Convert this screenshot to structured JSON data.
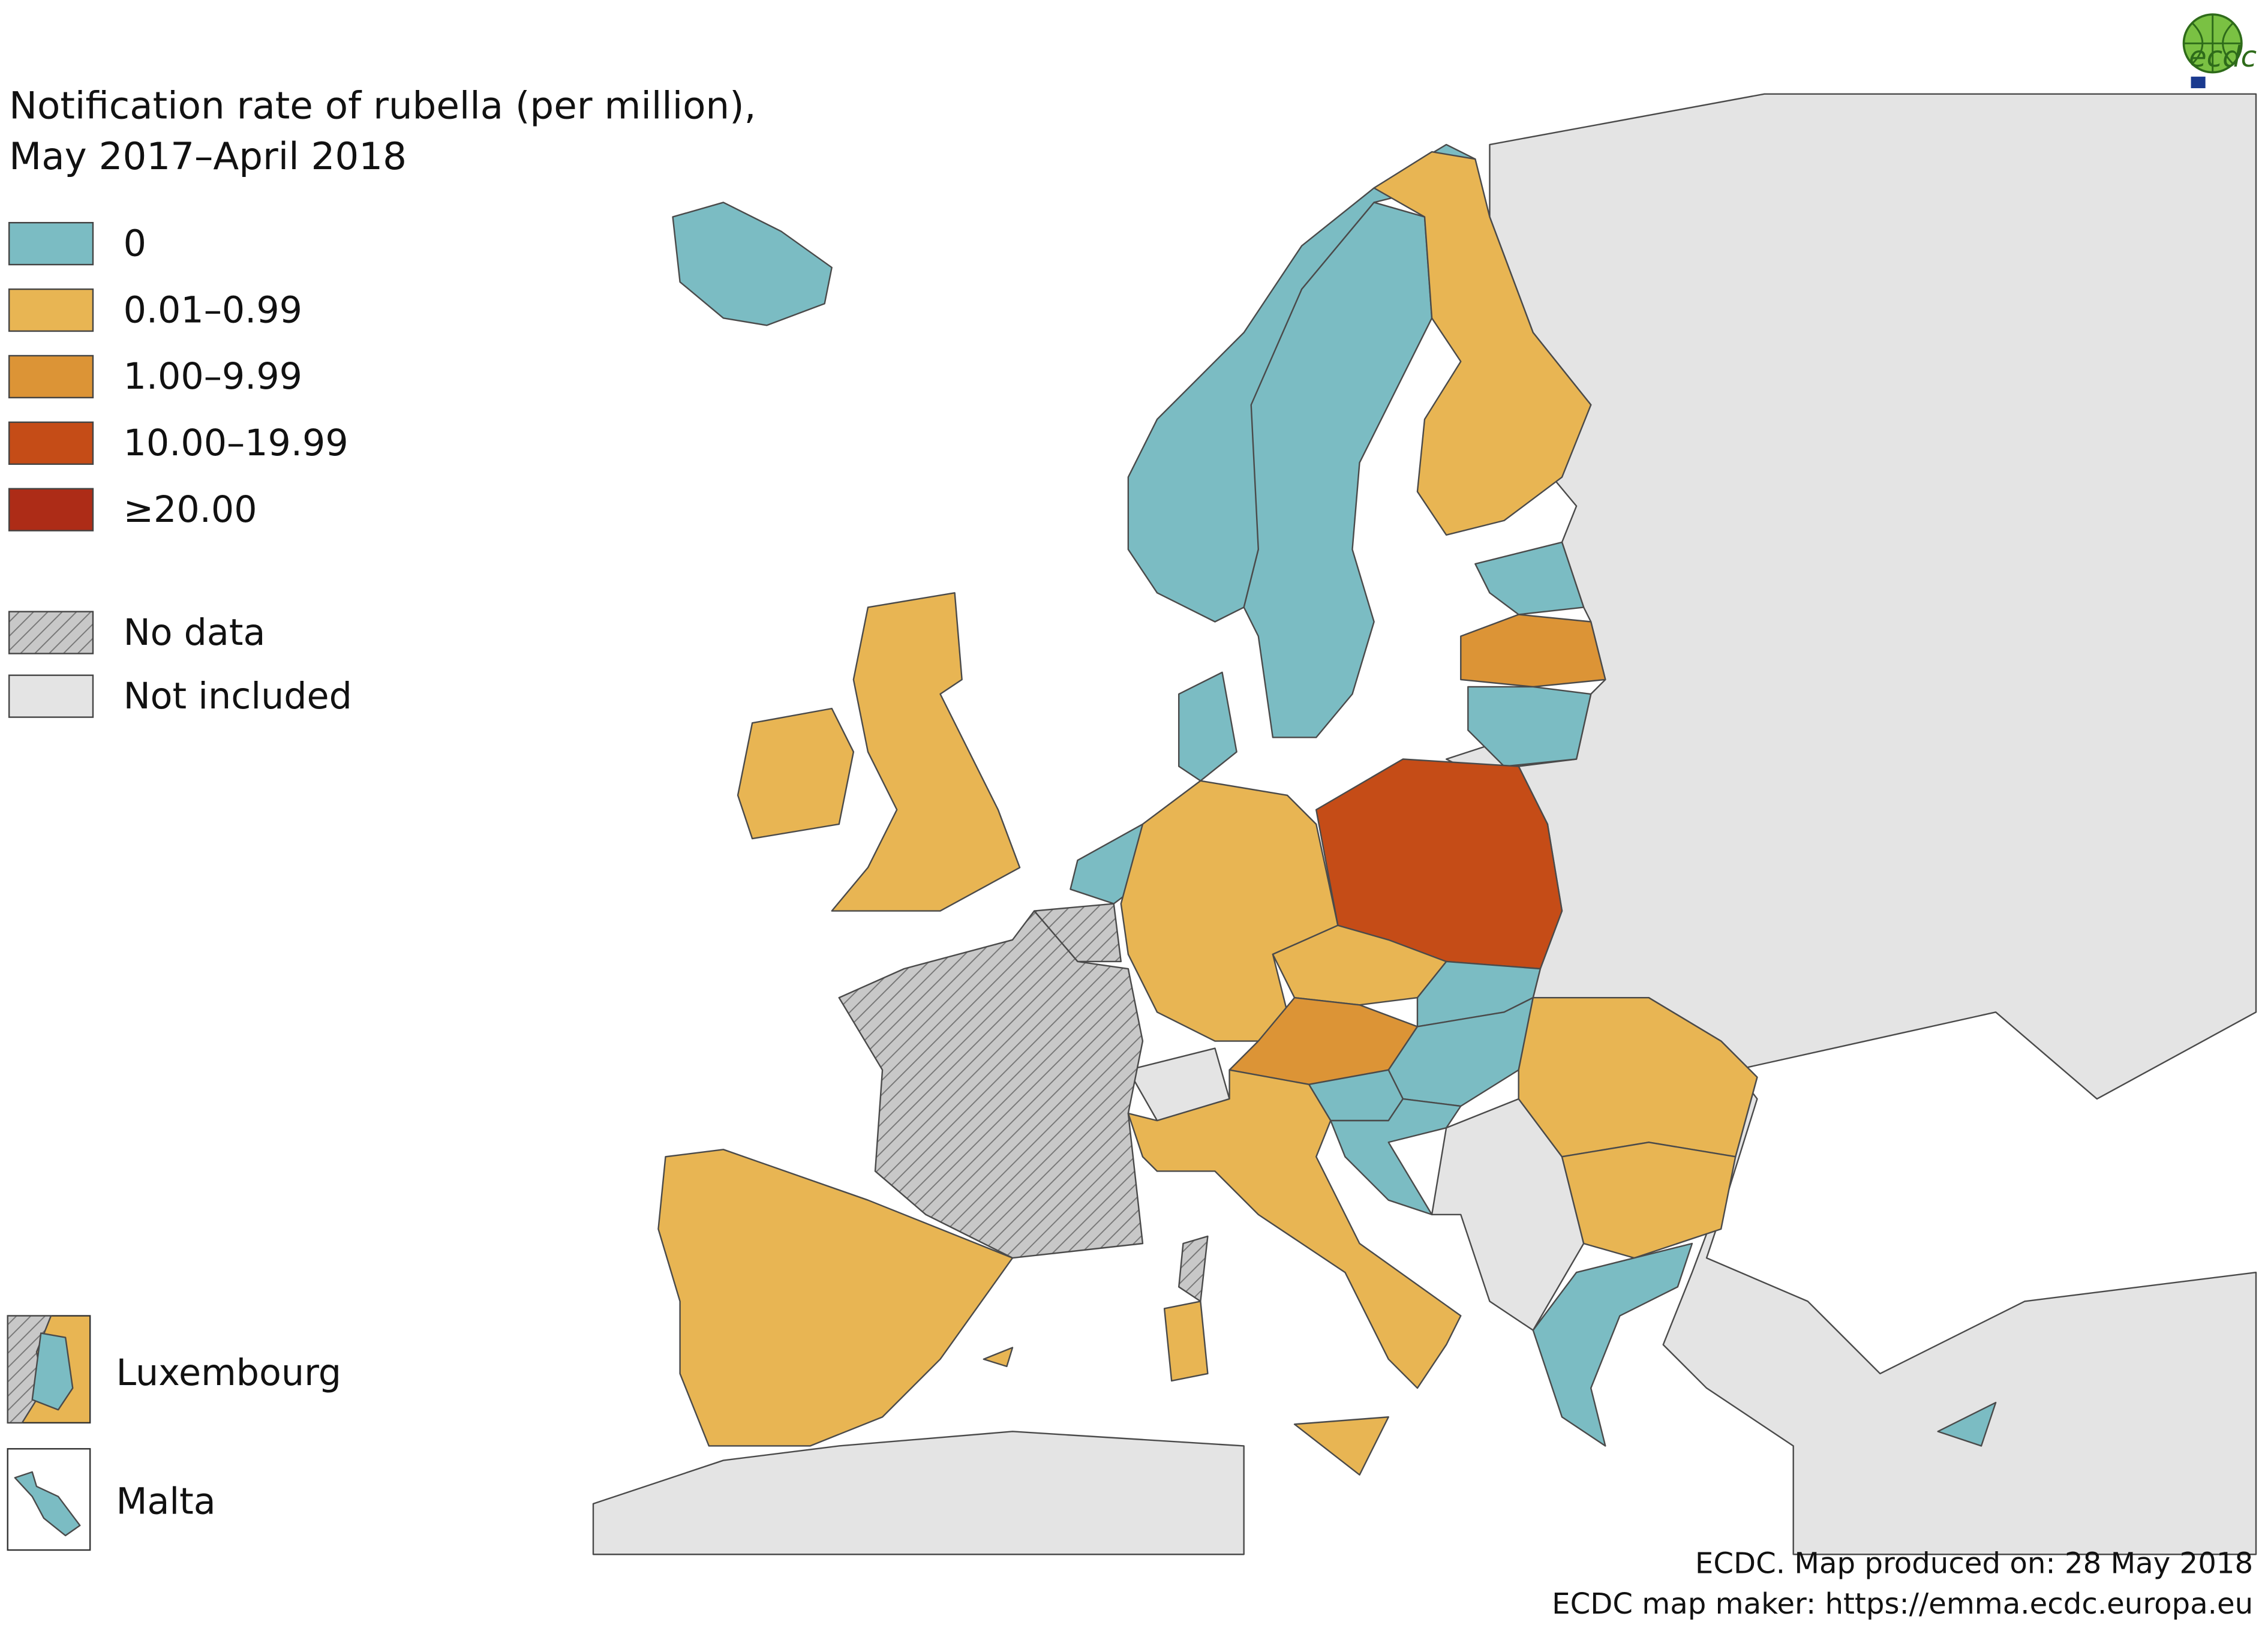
{
  "logo": "ecdc",
  "title": [
    "Notification rate of rubella (per million),",
    "May 2017–April 2018"
  ],
  "legend": [
    {
      "label": "0",
      "color": "#7bbcc3"
    },
    {
      "label": "0.01–0.99",
      "color": "#e8b553"
    },
    {
      "label": "1.00–9.99",
      "color": "#dc9436"
    },
    {
      "label": "10.00–19.99",
      "color": "#c54c17"
    },
    {
      "label": "≥20.00",
      "color": "#ad2c17"
    },
    {
      "label": "No data",
      "color": "#c8c8c8",
      "hatch": true
    },
    {
      "label": "Not included",
      "color": "#e4e4e4"
    }
  ],
  "insets": [
    "Luxembourg",
    "Malta"
  ],
  "footer": [
    "ECDC. Map produced on: 28 May 2018",
    "ECDC map maker: https://emma.ecdc.europa.eu"
  ]
}
